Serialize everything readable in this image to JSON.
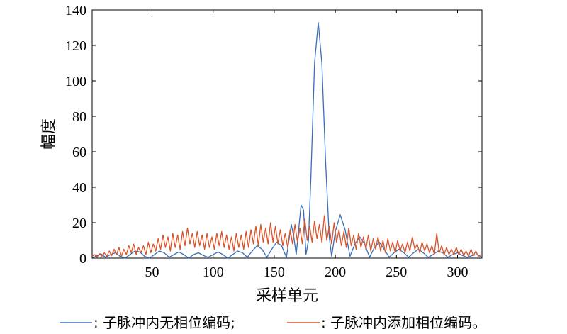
{
  "chart_data": {
    "type": "line",
    "title": "",
    "xlabel": "采样单元",
    "ylabel": "幅度",
    "xlim": [
      1,
      320
    ],
    "ylim": [
      0,
      140
    ],
    "xticks": [
      50,
      100,
      150,
      200,
      250,
      300
    ],
    "yticks": [
      0,
      20,
      40,
      60,
      80,
      100,
      120,
      140
    ],
    "grid": false,
    "legend": {
      "placement": "bottom",
      "entries": [
        {
          "label": ": 子脉冲内无相位编码;",
          "color": "#3a6fb8"
        },
        {
          "label": ": 子脉冲内添加相位编码。",
          "color": "#d9542b"
        }
      ]
    },
    "series": [
      {
        "color": "#3a6fb8",
        "points": [
          [
            1,
            0
          ],
          [
            4,
            1
          ],
          [
            8,
            2.5
          ],
          [
            12,
            0.5
          ],
          [
            16,
            2
          ],
          [
            20,
            3
          ],
          [
            24,
            1
          ],
          [
            28,
            0
          ],
          [
            32,
            2
          ],
          [
            36,
            4
          ],
          [
            40,
            3.5
          ],
          [
            44,
            1
          ],
          [
            48,
            0
          ],
          [
            52,
            2
          ],
          [
            56,
            4
          ],
          [
            60,
            3
          ],
          [
            64,
            0.5
          ],
          [
            68,
            2
          ],
          [
            72,
            3.5
          ],
          [
            76,
            2
          ],
          [
            80,
            0
          ],
          [
            84,
            2
          ],
          [
            88,
            3
          ],
          [
            92,
            1.5
          ],
          [
            96,
            0.5
          ],
          [
            100,
            2
          ],
          [
            104,
            3.5
          ],
          [
            108,
            2
          ],
          [
            112,
            0
          ],
          [
            116,
            2
          ],
          [
            120,
            4
          ],
          [
            124,
            3
          ],
          [
            128,
            0.5
          ],
          [
            132,
            4
          ],
          [
            136,
            7
          ],
          [
            140,
            5
          ],
          [
            144,
            0.5
          ],
          [
            148,
            5
          ],
          [
            152,
            9
          ],
          [
            156,
            7
          ],
          [
            160,
            0.5
          ],
          [
            164,
            19
          ],
          [
            166,
            12
          ],
          [
            168,
            2
          ],
          [
            172,
            30
          ],
          [
            174,
            27
          ],
          [
            176,
            2
          ],
          [
            178,
            10
          ],
          [
            180,
            45
          ],
          [
            183,
            110
          ],
          [
            186,
            133
          ],
          [
            189,
            110
          ],
          [
            192,
            55
          ],
          [
            195,
            12
          ],
          [
            197,
            1
          ],
          [
            200,
            15
          ],
          [
            204,
            24.5
          ],
          [
            208,
            16
          ],
          [
            212,
            1
          ],
          [
            216,
            8
          ],
          [
            220,
            12
          ],
          [
            224,
            8
          ],
          [
            228,
            0.5
          ],
          [
            232,
            6
          ],
          [
            236,
            9
          ],
          [
            240,
            5
          ],
          [
            244,
            0.5
          ],
          [
            248,
            3
          ],
          [
            252,
            5
          ],
          [
            256,
            3
          ],
          [
            260,
            0.5
          ],
          [
            264,
            3
          ],
          [
            268,
            5
          ],
          [
            272,
            3
          ],
          [
            276,
            0.5
          ],
          [
            280,
            2
          ],
          [
            284,
            4
          ],
          [
            288,
            3
          ],
          [
            292,
            0.5
          ],
          [
            296,
            2
          ],
          [
            300,
            3
          ],
          [
            304,
            1.5
          ],
          [
            308,
            0.5
          ],
          [
            312,
            1.5
          ],
          [
            316,
            2
          ],
          [
            320,
            0.5
          ]
        ]
      },
      {
        "color": "#d9542b",
        "points": [
          [
            1,
            1
          ],
          [
            3,
            2
          ],
          [
            5,
            0.5
          ],
          [
            7,
            2.5
          ],
          [
            9,
            1
          ],
          [
            11,
            3
          ],
          [
            13,
            1
          ],
          [
            15,
            4
          ],
          [
            17,
            1.5
          ],
          [
            19,
            5
          ],
          [
            21,
            2
          ],
          [
            23,
            6
          ],
          [
            25,
            1
          ],
          [
            27,
            5
          ],
          [
            29,
            2
          ],
          [
            31,
            7
          ],
          [
            33,
            3
          ],
          [
            35,
            8
          ],
          [
            37,
            2
          ],
          [
            39,
            6
          ],
          [
            41,
            3
          ],
          [
            43,
            7
          ],
          [
            45,
            2
          ],
          [
            47,
            9
          ],
          [
            49,
            3
          ],
          [
            51,
            8
          ],
          [
            53,
            4
          ],
          [
            55,
            11
          ],
          [
            57,
            5
          ],
          [
            59,
            13
          ],
          [
            61,
            6
          ],
          [
            63,
            12
          ],
          [
            65,
            4
          ],
          [
            67,
            14
          ],
          [
            69,
            6
          ],
          [
            71,
            13
          ],
          [
            73,
            5
          ],
          [
            75,
            15
          ],
          [
            77,
            7
          ],
          [
            79,
            17
          ],
          [
            81,
            8
          ],
          [
            83,
            14
          ],
          [
            85,
            6
          ],
          [
            87,
            15
          ],
          [
            89,
            7
          ],
          [
            91,
            13
          ],
          [
            93,
            5
          ],
          [
            95,
            14
          ],
          [
            97,
            6
          ],
          [
            99,
            12
          ],
          [
            101,
            5
          ],
          [
            103,
            14
          ],
          [
            105,
            7
          ],
          [
            107,
            15
          ],
          [
            109,
            6
          ],
          [
            111,
            13
          ],
          [
            113,
            5
          ],
          [
            115,
            12
          ],
          [
            117,
            4
          ],
          [
            119,
            14
          ],
          [
            121,
            6
          ],
          [
            123,
            13
          ],
          [
            125,
            5
          ],
          [
            127,
            15
          ],
          [
            129,
            6
          ],
          [
            131,
            16
          ],
          [
            133,
            8
          ],
          [
            135,
            18
          ],
          [
            137,
            7
          ],
          [
            139,
            19
          ],
          [
            141,
            9
          ],
          [
            143,
            17
          ],
          [
            145,
            8
          ],
          [
            147,
            20
          ],
          [
            149,
            9
          ],
          [
            151,
            18
          ],
          [
            153,
            8
          ],
          [
            155,
            16
          ],
          [
            157,
            7
          ],
          [
            159,
            14
          ],
          [
            161,
            6
          ],
          [
            163,
            16
          ],
          [
            165,
            8
          ],
          [
            167,
            19
          ],
          [
            169,
            9
          ],
          [
            171,
            17
          ],
          [
            173,
            8
          ],
          [
            175,
            22
          ],
          [
            177,
            10
          ],
          [
            179,
            18
          ],
          [
            181,
            9
          ],
          [
            183,
            21
          ],
          [
            185,
            11
          ],
          [
            187,
            19
          ],
          [
            189,
            9
          ],
          [
            191,
            24
          ],
          [
            193,
            10
          ],
          [
            195,
            18
          ],
          [
            197,
            8
          ],
          [
            199,
            20
          ],
          [
            201,
            9
          ],
          [
            203,
            16
          ],
          [
            205,
            7
          ],
          [
            207,
            15
          ],
          [
            209,
            6
          ],
          [
            211,
            17
          ],
          [
            213,
            7
          ],
          [
            215,
            13
          ],
          [
            217,
            5
          ],
          [
            219,
            14
          ],
          [
            221,
            6
          ],
          [
            223,
            12
          ],
          [
            225,
            5
          ],
          [
            227,
            13
          ],
          [
            229,
            4
          ],
          [
            231,
            11
          ],
          [
            233,
            5
          ],
          [
            235,
            12
          ],
          [
            237,
            4
          ],
          [
            239,
            10
          ],
          [
            241,
            3
          ],
          [
            243,
            11
          ],
          [
            245,
            4
          ],
          [
            247,
            9
          ],
          [
            249,
            3
          ],
          [
            251,
            10
          ],
          [
            253,
            4
          ],
          [
            255,
            8
          ],
          [
            257,
            3
          ],
          [
            259,
            9
          ],
          [
            261,
            4
          ],
          [
            263,
            12
          ],
          [
            265,
            5
          ],
          [
            267,
            8
          ],
          [
            269,
            3
          ],
          [
            271,
            9
          ],
          [
            273,
            4
          ],
          [
            275,
            8
          ],
          [
            277,
            3
          ],
          [
            279,
            7
          ],
          [
            281,
            2
          ],
          [
            283,
            14
          ],
          [
            285,
            3
          ],
          [
            287,
            7
          ],
          [
            289,
            2
          ],
          [
            291,
            6
          ],
          [
            293,
            2
          ],
          [
            295,
            5
          ],
          [
            297,
            2
          ],
          [
            299,
            6
          ],
          [
            301,
            2
          ],
          [
            303,
            5
          ],
          [
            305,
            1.5
          ],
          [
            307,
            4
          ],
          [
            309,
            1
          ],
          [
            311,
            5
          ],
          [
            313,
            1.5
          ],
          [
            315,
            4
          ],
          [
            317,
            1
          ],
          [
            319,
            2
          ]
        ]
      }
    ]
  }
}
